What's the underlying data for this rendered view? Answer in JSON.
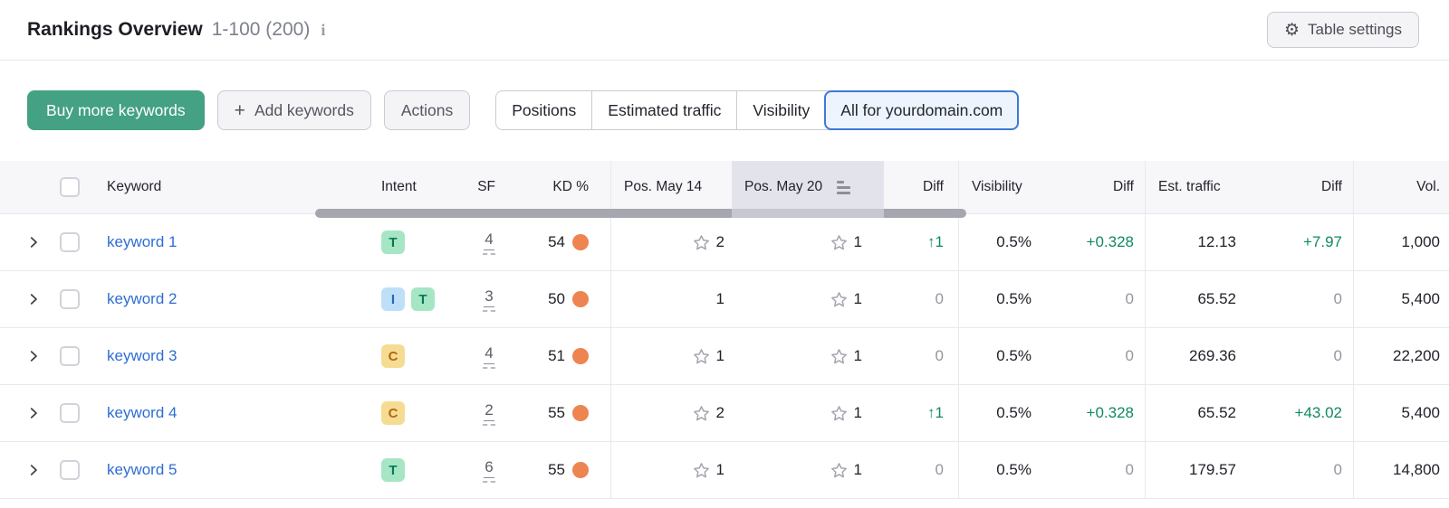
{
  "header": {
    "title": "Rankings Overview",
    "range": "1-100 (200)",
    "info_icon": "i",
    "table_settings_label": "Table settings"
  },
  "toolbar": {
    "buy_label": "Buy more keywords",
    "add_label": "Add keywords",
    "actions_label": "Actions",
    "tabs": [
      {
        "label": "Positions",
        "selected": false
      },
      {
        "label": "Estimated traffic",
        "selected": false
      },
      {
        "label": "Visibility",
        "selected": false
      },
      {
        "label": "All for yourdomain.com",
        "selected": true
      }
    ]
  },
  "colors": {
    "accent_green_button": "#44a183",
    "selected_tab_border": "#3f7ad6",
    "selected_tab_bg": "#eef4fd",
    "link_blue": "#2e6dd2",
    "diff_green": "#0f8a60",
    "diff_gray": "#94969f",
    "kd_dot_orange": "#ee8450",
    "sorted_header_bg": "#e3e4eb",
    "intent": {
      "T": {
        "bg": "#a6e6c4",
        "text": "#057a55"
      },
      "I": {
        "bg": "#bedff7",
        "text": "#1f6bb5"
      },
      "C": {
        "bg": "#f6dc92",
        "text": "#b06811"
      }
    }
  },
  "table": {
    "columns": [
      "Keyword",
      "Intent",
      "SF",
      "KD %",
      "Pos. May 14",
      "Pos. May 20",
      "Diff",
      "Visibility",
      "Diff",
      "Est. traffic",
      "Diff",
      "Vol."
    ],
    "sorted_column": "Pos. May 20",
    "rows": [
      {
        "keyword": "keyword 1",
        "intents": [
          "T"
        ],
        "sf": "4",
        "kd": "54",
        "pos_may14": {
          "star": true,
          "value": "2"
        },
        "pos_may20": {
          "star": true,
          "value": "1"
        },
        "pos_diff": {
          "value": "1",
          "direction": "up"
        },
        "visibility": "0.5%",
        "vis_diff": {
          "value": "+0.328",
          "positive": true
        },
        "est_traffic": "12.13",
        "traffic_diff": {
          "value": "+7.97",
          "positive": true
        },
        "volume": "1,000"
      },
      {
        "keyword": "keyword 2",
        "intents": [
          "I",
          "T"
        ],
        "sf": "3",
        "kd": "50",
        "pos_may14": {
          "star": false,
          "value": "1"
        },
        "pos_may20": {
          "star": true,
          "value": "1"
        },
        "pos_diff": {
          "value": "0",
          "direction": "none"
        },
        "visibility": "0.5%",
        "vis_diff": {
          "value": "0",
          "positive": false
        },
        "est_traffic": "65.52",
        "traffic_diff": {
          "value": "0",
          "positive": false
        },
        "volume": "5,400"
      },
      {
        "keyword": "keyword 3",
        "intents": [
          "C"
        ],
        "sf": "4",
        "kd": "51",
        "pos_may14": {
          "star": true,
          "value": "1"
        },
        "pos_may20": {
          "star": true,
          "value": "1"
        },
        "pos_diff": {
          "value": "0",
          "direction": "none"
        },
        "visibility": "0.5%",
        "vis_diff": {
          "value": "0",
          "positive": false
        },
        "est_traffic": "269.36",
        "traffic_diff": {
          "value": "0",
          "positive": false
        },
        "volume": "22,200"
      },
      {
        "keyword": "keyword 4",
        "intents": [
          "C"
        ],
        "sf": "2",
        "kd": "55",
        "pos_may14": {
          "star": true,
          "value": "2"
        },
        "pos_may20": {
          "star": true,
          "value": "1"
        },
        "pos_diff": {
          "value": "1",
          "direction": "up"
        },
        "visibility": "0.5%",
        "vis_diff": {
          "value": "+0.328",
          "positive": true
        },
        "est_traffic": "65.52",
        "traffic_diff": {
          "value": "+43.02",
          "positive": true
        },
        "volume": "5,400"
      },
      {
        "keyword": "keyword 5",
        "intents": [
          "T"
        ],
        "sf": "6",
        "kd": "55",
        "pos_may14": {
          "star": true,
          "value": "1"
        },
        "pos_may20": {
          "star": true,
          "value": "1"
        },
        "pos_diff": {
          "value": "0",
          "direction": "none"
        },
        "visibility": "0.5%",
        "vis_diff": {
          "value": "0",
          "positive": false
        },
        "est_traffic": "179.57",
        "traffic_diff": {
          "value": "0",
          "positive": false
        },
        "volume": "14,800"
      }
    ]
  }
}
